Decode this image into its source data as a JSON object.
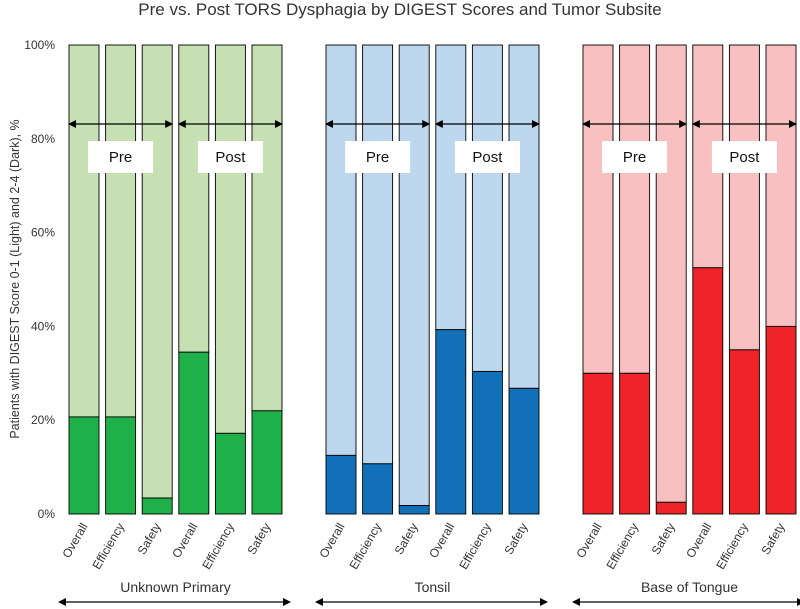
{
  "chart_data": {
    "type": "bar",
    "stacked": true,
    "title": "Pre vs. Post TORS Dysphagia by DIGEST Scores and Tumor Subsite",
    "ylabel": "Patients with DIGEST Score 0-1 (Light) and 2-4 (Dark), %",
    "xlabel": "",
    "ylim": [
      0,
      100
    ],
    "y_ticks": [
      "0%",
      "20%",
      "40%",
      "60%",
      "80%",
      "100%"
    ],
    "series_names": [
      "DIGEST 2-4 (Dark)",
      "DIGEST 0-1 (Light)"
    ],
    "phase_labels": [
      "Pre",
      "Post"
    ],
    "groups": [
      {
        "name": "Unknown Primary",
        "colors": {
          "dark": "#1fb04a",
          "light": "#c6e0b4"
        },
        "categories": [
          "Overall",
          "Efficiency",
          "Safety",
          "Overall",
          "Efficiency",
          "Safety"
        ],
        "dark_values": [
          20.7,
          20.7,
          3.4,
          34.5,
          17.2,
          22.0
        ]
      },
      {
        "name": "Tonsil",
        "colors": {
          "dark": "#1170b8",
          "light": "#bdd7ee"
        },
        "categories": [
          "Overall",
          "Efficiency",
          "Safety",
          "Overall",
          "Efficiency",
          "Safety"
        ],
        "dark_values": [
          12.5,
          10.7,
          1.8,
          39.3,
          30.4,
          26.8
        ]
      },
      {
        "name": "Base of Tongue",
        "colors": {
          "dark": "#ee2429",
          "light": "#f8c0c0"
        },
        "categories": [
          "Overall",
          "Efficiency",
          "Safety",
          "Overall",
          "Efficiency",
          "Safety"
        ],
        "dark_values": [
          30.0,
          30.0,
          2.5,
          52.5,
          35.0,
          40.0
        ]
      }
    ]
  }
}
